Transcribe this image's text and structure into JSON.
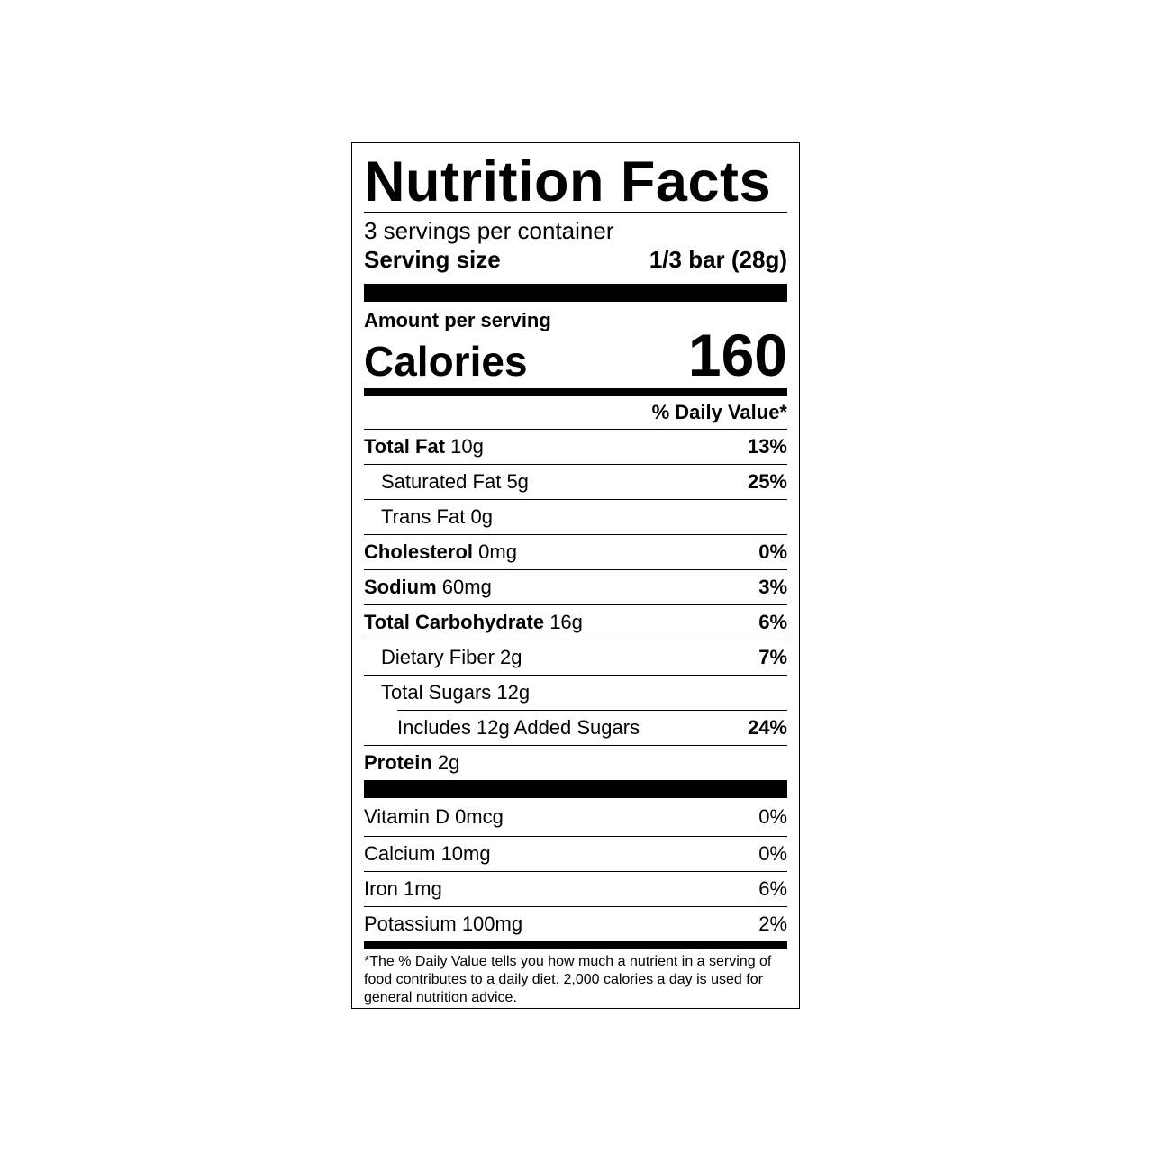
{
  "title": "Nutrition Facts",
  "servings_per_container": "3 servings per container",
  "serving_size": {
    "label": "Serving size",
    "value": "1/3 bar (28g)"
  },
  "amount_per_serving": "Amount per serving",
  "calories": {
    "label": "Calories",
    "value": "160"
  },
  "daily_value_header": "% Daily Value*",
  "nutrients": [
    {
      "name": "Total Fat",
      "amount": "10g",
      "dv": "13%"
    },
    {
      "name": "Saturated Fat",
      "amount": "5g",
      "dv": "25%"
    },
    {
      "name": "Trans Fat",
      "amount": "0g",
      "dv": ""
    },
    {
      "name": "Cholesterol",
      "amount": "0mg",
      "dv": "0%"
    },
    {
      "name": "Sodium",
      "amount": "60mg",
      "dv": "3%"
    },
    {
      "name": "Total Carbohydrate",
      "amount": "16g",
      "dv": "6%"
    },
    {
      "name": "Dietary Fiber",
      "amount": "2g",
      "dv": "7%"
    },
    {
      "name": "Total Sugars",
      "amount": "12g",
      "dv": ""
    },
    {
      "name": "Includes 12g Added Sugars",
      "amount": "",
      "dv": "24%"
    },
    {
      "name": "Protein",
      "amount": "2g",
      "dv": ""
    }
  ],
  "vitamins": [
    {
      "name": "Vitamin D 0mcg",
      "dv": "0%"
    },
    {
      "name": "Calcium 10mg",
      "dv": "0%"
    },
    {
      "name": "Iron 1mg",
      "dv": "6%"
    },
    {
      "name": "Potassium 100mg",
      "dv": "2%"
    }
  ],
  "footnote": "*The % Daily Value tells you how much a nutrient in a serving of food contributes to a daily diet. 2,000 calories a day is used for general nutrition advice."
}
